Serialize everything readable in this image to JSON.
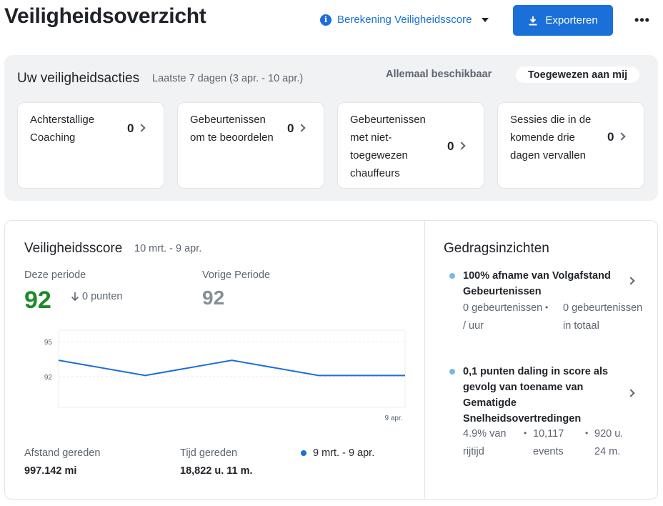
{
  "header": {
    "title": "Veiligheidsoverzicht",
    "calc_link": "Berekening Veiligheidsscore",
    "export_label": "Exporteren",
    "more_label": "•••"
  },
  "actions": {
    "title": "Uw veiligheidsacties",
    "range": "Laatste 7 dagen (3 apr. - 10 apr.)",
    "filter_all": "Allemaal beschikbaar",
    "filter_mine": "Toegewezen aan mij",
    "cards": [
      {
        "label": "Achterstallige Coaching",
        "count": "0"
      },
      {
        "label": "Gebeurtenissen om te beoordelen",
        "count": "0"
      },
      {
        "label": "Gebeurtenissen met niet-toegewezen chauffeurs",
        "count": "0"
      },
      {
        "label": "Sessies die in de komende drie dagen vervallen",
        "count": "0"
      }
    ]
  },
  "score": {
    "title": "Veiligheidsscore",
    "range": "10 mrt. - 9 apr.",
    "this_period_label": "Deze periode",
    "this_period_value": "92",
    "delta": "0 punten",
    "prev_period_label": "Vorige Periode",
    "prev_period_value": "92",
    "distance_label": "Afstand gereden",
    "distance_value": "997.142 mi",
    "time_label": "Tijd gereden",
    "time_value": "18,822 u. 11 m.",
    "legend": "9 mrt. - 9 apr.",
    "line_color": "#1a6fd8"
  },
  "chart_data": {
    "type": "line",
    "y_ticks": [
      "95",
      "92"
    ],
    "x_tick_label": "9 apr.",
    "ylim": [
      90.5,
      96
    ],
    "series": [
      {
        "name": "9 mrt. - 9 apr.",
        "values": [
          93.4,
          92.1,
          93.4,
          92.1,
          92.1
        ]
      }
    ]
  },
  "insights": {
    "title": "Gedragsinzichten",
    "items": [
      {
        "title": "100% afname van Volgafstand Gebeurtenissen",
        "stats": [
          "0 gebeurtenissen / uur",
          "0 gebeurtenissen in totaal"
        ]
      },
      {
        "title": "0,1 punten daling in score als gevolg van toename van Gematigde Snelheidsovertredingen",
        "stats": [
          "4.9% van rijtijd",
          "10,117 events",
          "920 u. 24 m."
        ]
      }
    ]
  }
}
